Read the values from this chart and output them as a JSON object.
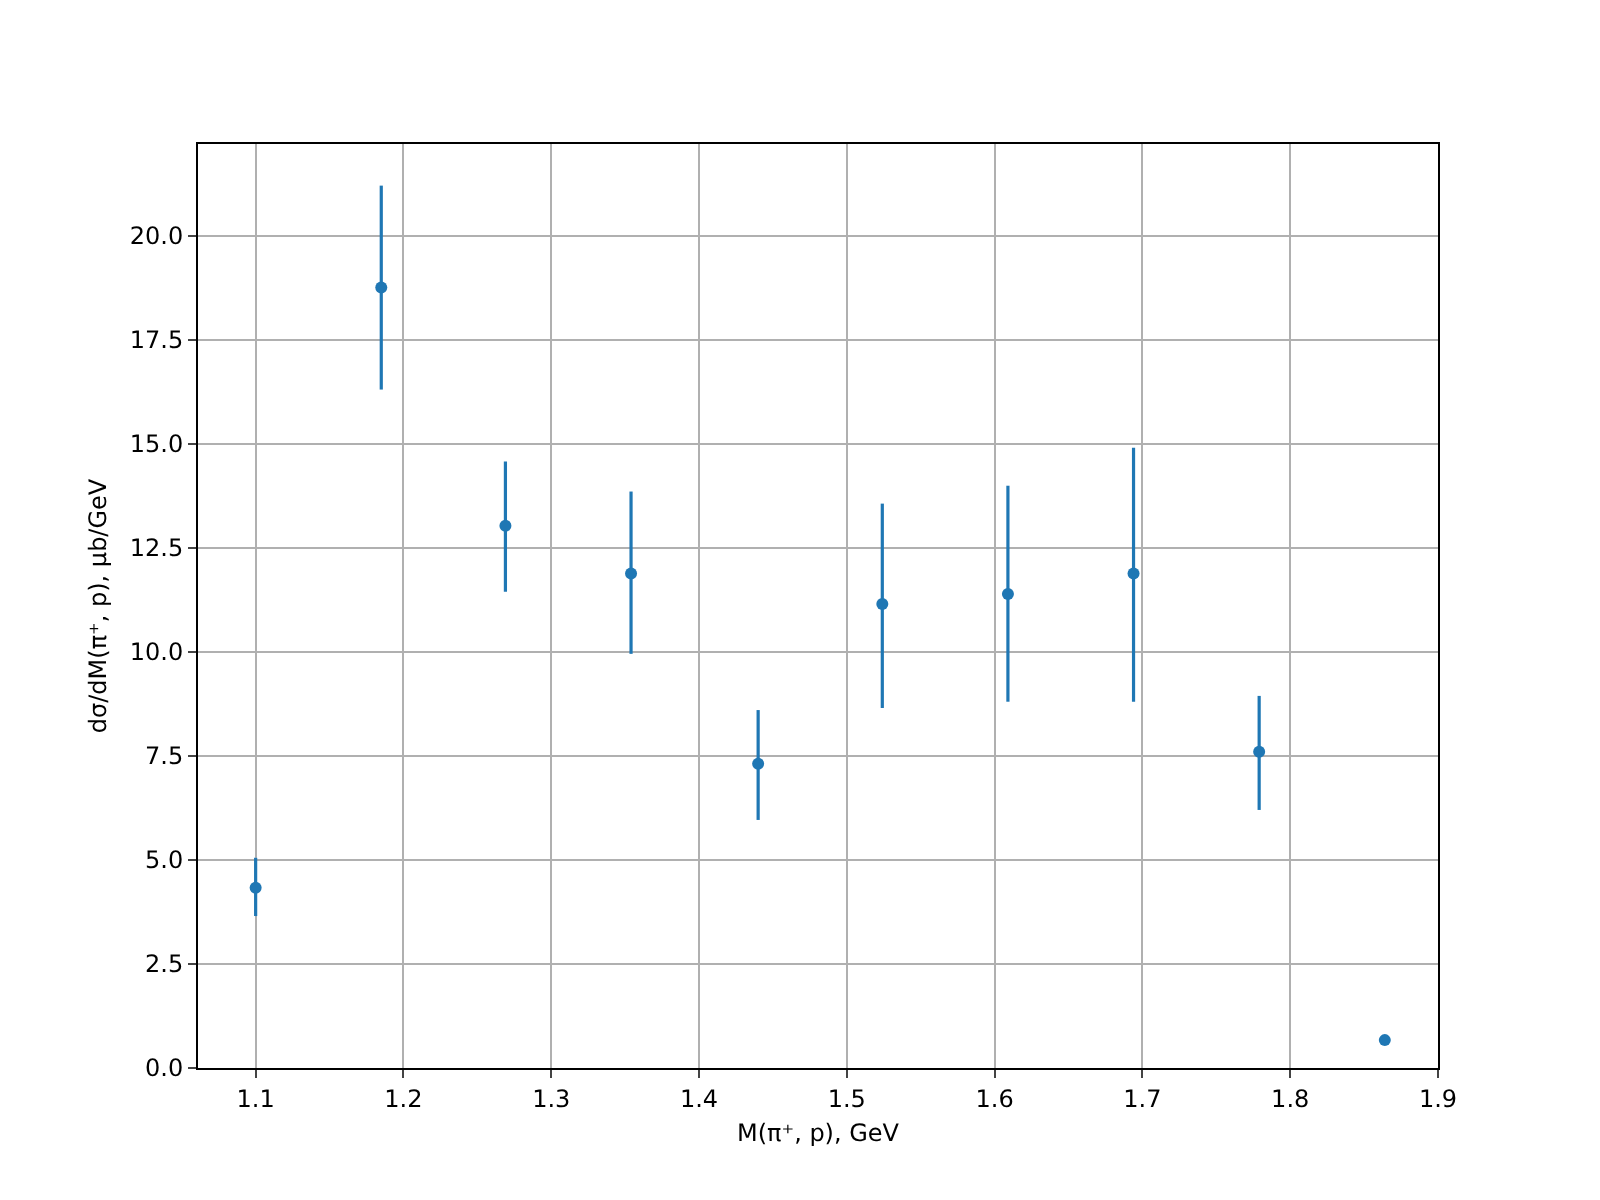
{
  "chart_data": {
    "type": "scatter",
    "xlabel": "M(π⁺, p), GeV",
    "ylabel": "dσ/dM(π⁺, p), μb/GeV",
    "x": [
      1.1,
      1.185,
      1.269,
      1.354,
      1.44,
      1.524,
      1.609,
      1.694,
      1.779,
      1.864
    ],
    "series": [
      {
        "color": "#1f77b4",
        "values": [
          4.33,
          18.75,
          13.03,
          11.88,
          7.31,
          11.15,
          11.39,
          11.88,
          7.6,
          0.67
        ],
        "errors": [
          [
            3.65,
            5.05
          ],
          [
            16.3,
            21.2
          ],
          [
            11.44,
            14.57
          ],
          [
            9.95,
            13.85
          ],
          [
            5.96,
            8.6
          ],
          [
            8.65,
            13.56
          ],
          [
            8.8,
            13.99
          ],
          [
            8.8,
            14.9
          ],
          [
            6.2,
            8.94
          ],
          null
        ]
      }
    ],
    "xlim": [
      1.061,
      1.9
    ],
    "ylim": [
      0,
      22.2
    ],
    "xticks": [
      1.1,
      1.2,
      1.3,
      1.4,
      1.5,
      1.6,
      1.7,
      1.8,
      1.9
    ],
    "yticks": [
      {
        "value": 0,
        "label": "0.0"
      },
      2.5,
      {
        "value": 5,
        "label": "5.0"
      },
      7.5,
      {
        "value": 10,
        "label": "10.0"
      },
      12.5,
      {
        "value": 15,
        "label": "15.0"
      },
      17.5,
      {
        "value": 20,
        "label": "20.0"
      }
    ],
    "grid": true,
    "marker": "circle"
  }
}
